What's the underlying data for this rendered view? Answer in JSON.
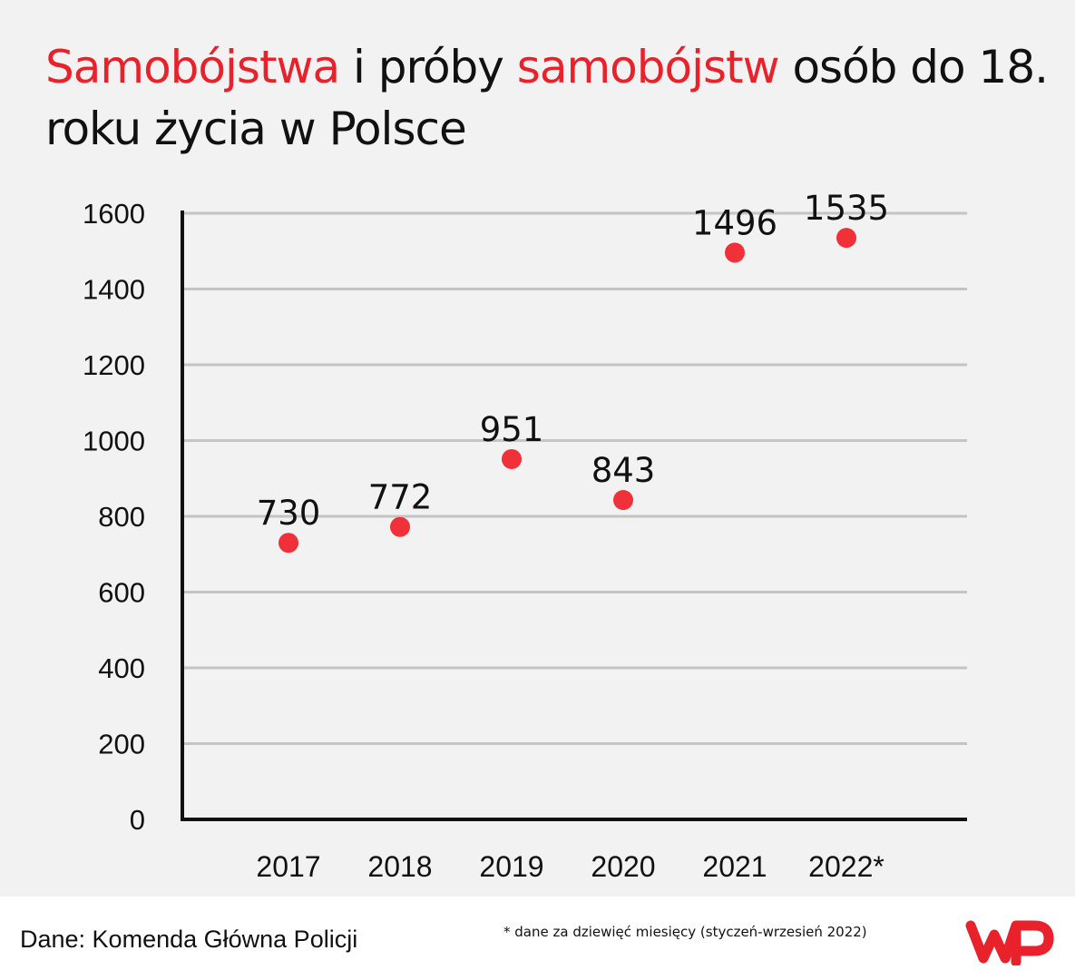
{
  "title": {
    "part1": "Samobójstwa",
    "part2": " i próby ",
    "part3": "samobójstw",
    "part4": " osób do 18. roku życia w Polsce"
  },
  "chart_data": {
    "type": "scatter",
    "categories": [
      "2017",
      "2018",
      "2019",
      "2020",
      "2021",
      "2022*"
    ],
    "values": [
      730,
      772,
      951,
      843,
      1496,
      1535
    ],
    "data_labels": [
      "730",
      "772",
      "951",
      "843",
      "1496",
      "1535"
    ],
    "y_ticks": [
      "0",
      "200",
      "400",
      "600",
      "800",
      "1000",
      "1200",
      "1400",
      "1600"
    ],
    "ylim": [
      0,
      1600
    ],
    "grid": true,
    "marker_color": "#f0313a",
    "grid_color": "#c4c4c4"
  },
  "footer": {
    "source": "Dane: Komenda Główna Policji",
    "footnote": "* dane za dziewięć miesięcy (styczeń-wrzesień 2022)",
    "logo_color": "#e8212b"
  }
}
